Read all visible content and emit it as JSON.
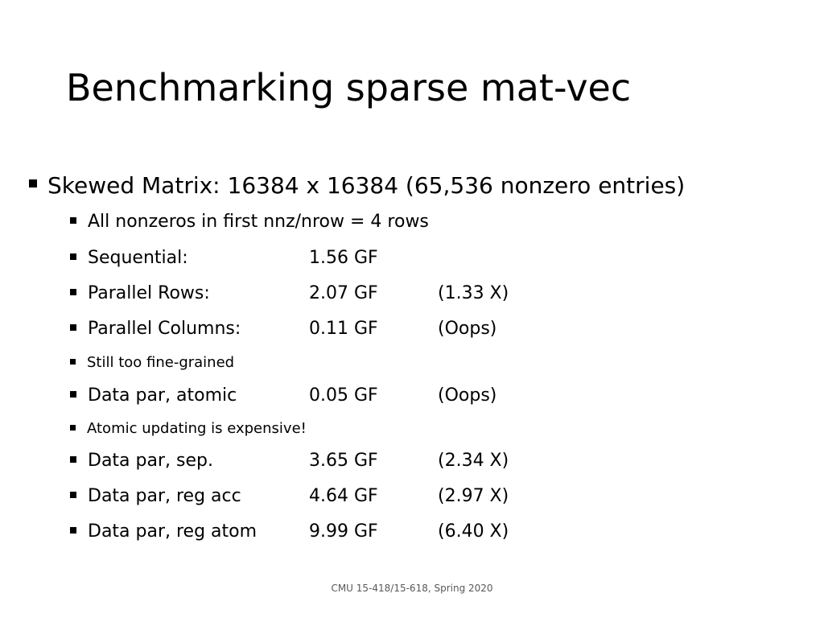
{
  "title": "Benchmarking sparse mat-vec",
  "main_bullet": "Skewed Matrix: 16384 x 16384 (65,536 nonzero entries)",
  "sub_bullets": [
    {
      "label": "All nonzeros in first nnz/nrow = 4 rows",
      "value": "",
      "note": ""
    },
    {
      "label": "Sequential:",
      "value": "1.56 GF",
      "note": ""
    },
    {
      "label": "Parallel Rows:",
      "value": "2.07 GF",
      "note": "(1.33 X)"
    },
    {
      "label": "Parallel Columns:",
      "value": "0.11 GF",
      "note": "(Oops)"
    },
    {
      "label": "Still too fine-grained",
      "value": "",
      "note": ""
    },
    {
      "label": "Data par, atomic",
      "value": "0.05 GF",
      "note": "(Oops)"
    },
    {
      "label": "Atomic updating is expensive!",
      "value": "",
      "note": ""
    },
    {
      "label": "Data par, sep.",
      "value": "3.65 GF",
      "note": "(2.34 X)"
    },
    {
      "label": "Data par, reg acc",
      "value": "4.64 GF",
      "note": "(2.97 X)"
    },
    {
      "label": "Data par, reg atom",
      "value": "9.99 GF",
      "note": "(6.40 X)"
    }
  ],
  "footer": "CMU 15-418/15-618, Spring 2020"
}
